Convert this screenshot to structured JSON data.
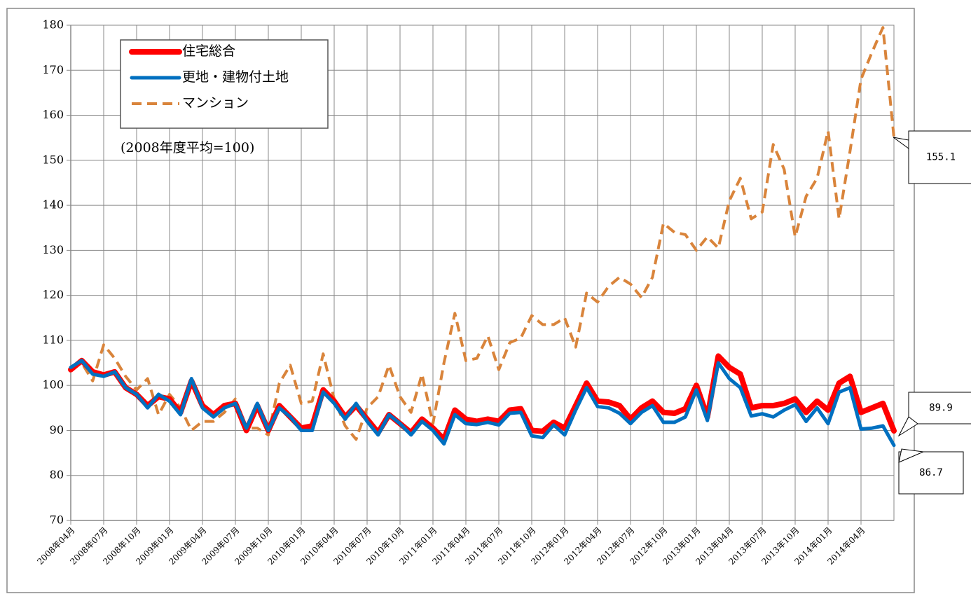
{
  "chart_data": {
    "type": "line",
    "annotation": "(2008年度平均=100)",
    "categories": [
      "2008年04月",
      null,
      null,
      "2008年07月",
      null,
      null,
      "2008年10月",
      null,
      null,
      "2009年01月",
      null,
      null,
      "2009年04月",
      null,
      null,
      "2009年07月",
      null,
      null,
      "2009年10月",
      null,
      null,
      "2010年01月",
      null,
      null,
      "2010年04月",
      null,
      null,
      "2010年07月",
      null,
      null,
      "2010年10月",
      null,
      null,
      "2011年01月",
      null,
      null,
      "2011年04月",
      null,
      null,
      "2011年07月",
      null,
      null,
      "2011年10月",
      null,
      null,
      "2012年01月",
      null,
      null,
      "2012年04月",
      null,
      null,
      "2012年07月",
      null,
      null,
      "2012年10月",
      null,
      null,
      "2013年01月",
      null,
      null,
      "2013年04月",
      null,
      null,
      "2013年07月",
      null,
      null,
      "2013年10月",
      null,
      null,
      "2014年01月",
      null,
      null,
      "2014年04月",
      null,
      null,
      null
    ],
    "series": [
      {
        "name": "住宅総合",
        "color": "#ff0000",
        "line_style": "solid",
        "values": [
          103.5,
          105.5,
          103,
          102.3,
          103,
          99.5,
          98,
          95.5,
          97.5,
          97,
          94,
          101,
          95.5,
          93.5,
          95.5,
          96,
          90,
          95.5,
          90,
          95.5,
          93,
          90.5,
          91,
          99,
          96.5,
          93,
          95.5,
          92.5,
          89.5,
          93.5,
          91.5,
          89.5,
          92.5,
          90.5,
          88,
          94.5,
          92.5,
          92,
          92.5,
          92,
          94.5,
          94.8,
          90,
          89.8,
          91.8,
          90.5,
          95.5,
          100.5,
          96.5,
          96.3,
          95.5,
          92.5,
          95,
          96.5,
          94,
          93.8,
          94.8,
          100,
          93,
          106.5,
          104,
          102.5,
          95,
          95.5,
          95.5,
          96,
          97,
          94,
          96.5,
          94.5,
          100.5,
          102,
          94,
          95,
          96,
          89.9
        ]
      },
      {
        "name": "更地・建物付土地",
        "color": "#0070c0",
        "line_style": "solid",
        "values": [
          104,
          105.5,
          102.5,
          102,
          103,
          99.5,
          98,
          95,
          98,
          96.5,
          93.5,
          101.5,
          95,
          93,
          95,
          96,
          90.5,
          96,
          90,
          95,
          93,
          90,
          90,
          98.5,
          96,
          92.5,
          96,
          92,
          89,
          93.5,
          91.5,
          89,
          92,
          90,
          87,
          93.5,
          91.5,
          91.3,
          91.8,
          91.2,
          93.8,
          94,
          88.8,
          88.4,
          91.2,
          89,
          94.5,
          99.5,
          95.3,
          95,
          93.8,
          91.5,
          94,
          95.5,
          91.8,
          91.8,
          93,
          99,
          92.2,
          105,
          101.5,
          99.5,
          93.2,
          93.7,
          93,
          94.5,
          95.7,
          92,
          95,
          91.5,
          98.5,
          99.5,
          90.3,
          90.5,
          91,
          86.7
        ]
      },
      {
        "name": "マンション",
        "color": "#d9843b",
        "line_style": "dashed",
        "values": [
          104,
          105,
          101,
          109,
          106,
          102,
          99,
          101.5,
          93.5,
          98,
          95,
          90,
          92,
          92,
          94,
          97,
          90.5,
          90.5,
          89,
          100.5,
          104.5,
          96,
          96.5,
          107,
          97,
          91,
          88,
          95,
          97.5,
          104.5,
          97.5,
          94,
          102.5,
          91.5,
          105,
          116,
          105.5,
          106,
          111,
          103.5,
          109.5,
          110.5,
          115.5,
          113.5,
          113.5,
          115,
          108.5,
          120.5,
          118.5,
          122,
          124,
          122.5,
          119.5,
          124,
          136,
          134,
          133.5,
          130,
          133,
          130.5,
          141,
          146,
          137,
          138.5,
          153.5,
          148,
          133,
          142,
          146,
          156.5,
          137,
          152,
          168,
          174,
          179.5,
          155.1
        ]
      }
    ],
    "ylim": [
      70,
      180
    ],
    "yticks": [
      70,
      80,
      90,
      100,
      110,
      120,
      130,
      140,
      150,
      160,
      170,
      180
    ],
    "grid": true,
    "legend": "upper left"
  }
}
